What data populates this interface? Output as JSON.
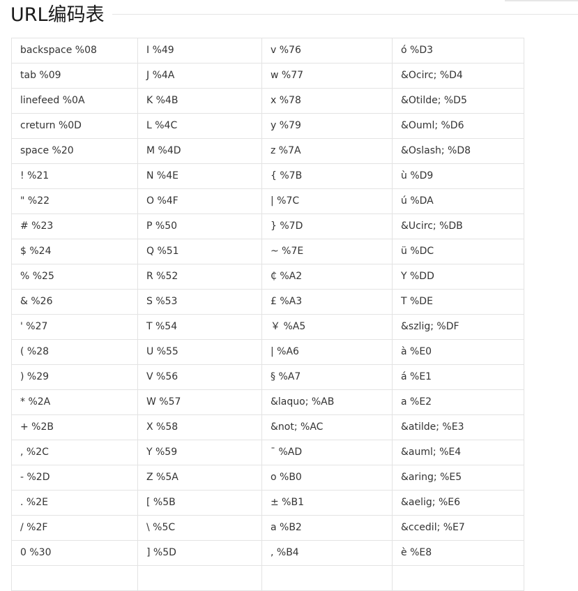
{
  "title": "URL编码表",
  "rows": [
    [
      "backspace %08",
      "I %49",
      "v %76",
      "ó %D3"
    ],
    [
      "tab %09",
      "J %4A",
      "w %77",
      "&Ocirc; %D4"
    ],
    [
      "linefeed %0A",
      "K %4B",
      "x %78",
      "&Otilde; %D5"
    ],
    [
      "creturn %0D",
      "L %4C",
      "y %79",
      "&Ouml; %D6"
    ],
    [
      "space %20",
      "M %4D",
      "z %7A",
      "&Oslash; %D8"
    ],
    [
      "! %21",
      "N %4E",
      "{ %7B",
      "ù %D9"
    ],
    [
      "\" %22",
      "O %4F",
      "| %7C",
      "ú     %DA"
    ],
    [
      "# %23",
      "P %50",
      "} %7D",
      "&Ucirc; %DB"
    ],
    [
      "$ %24",
      "Q %51",
      "~ %7E",
      "ü %DC"
    ],
    [
      "% %25",
      "R %52",
      "₵ %A2",
      "Y %DD"
    ],
    [
      "& %26",
      "S %53",
      "£ %A3",
      "T %DE"
    ],
    [
      "' %27",
      "T %54",
      "￥ %A5",
      "&szlig; %DF"
    ],
    [
      "( %28",
      "U %55",
      "| %A6",
      "à %E0"
    ],
    [
      ") %29",
      "V %56",
      "§ %A7",
      "á %E1"
    ],
    [
      "* %2A",
      "W %57",
      "&laquo; %AB",
      "a %E2"
    ],
    [
      "+ %2B",
      "X %58",
      "&not; %AC",
      "&atilde; %E3"
    ],
    [
      ", %2C",
      "Y %59",
      "¯ %AD",
      "&auml; %E4"
    ],
    [
      "- %2D",
      "Z %5A",
      "o %B0",
      "&aring; %E5"
    ],
    [
      ". %2E",
      "[ %5B",
      "± %B1",
      "&aelig; %E6"
    ],
    [
      "/ %2F",
      "\\ %5C",
      "a %B2",
      "&ccedil; %E7"
    ],
    [
      "0 %30",
      "] %5D",
      ", %B4",
      "è %E8"
    ],
    [
      "",
      "",
      "",
      ""
    ]
  ]
}
